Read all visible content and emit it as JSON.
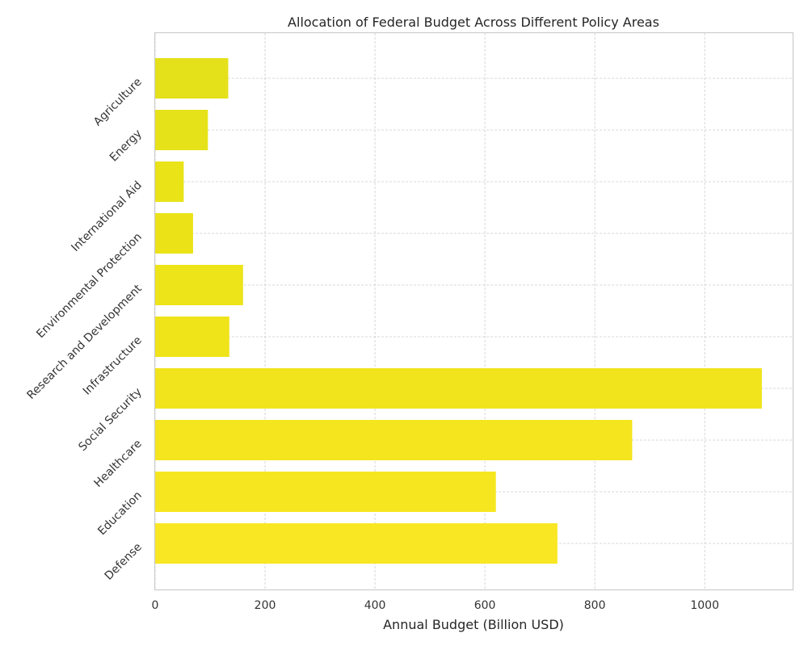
{
  "chart_data": {
    "type": "bar",
    "orientation": "horizontal",
    "title": "Allocation of Federal Budget Across Different Policy Areas",
    "xlabel": "Annual Budget (Billion USD)",
    "ylabel": "",
    "xlim": [
      0,
      1160
    ],
    "xticks": [
      0,
      200,
      400,
      600,
      800,
      1000
    ],
    "grid": true,
    "categories": [
      "Defense",
      "Education",
      "Healthcare",
      "Social Security",
      "Infrastructure",
      "Research and Development",
      "Environmental Protection",
      "International Aid",
      "Energy",
      "Agriculture"
    ],
    "values": [
      732,
      620,
      868,
      1104,
      135,
      160,
      69,
      52,
      96,
      133
    ],
    "bar_colors": [
      "#f9e723",
      "#f6e620",
      "#f4e51e",
      "#f2e41c",
      "#efe41a",
      "#ede419",
      "#ebe318",
      "#e9e318",
      "#e6e219",
      "#e4e11a"
    ]
  }
}
